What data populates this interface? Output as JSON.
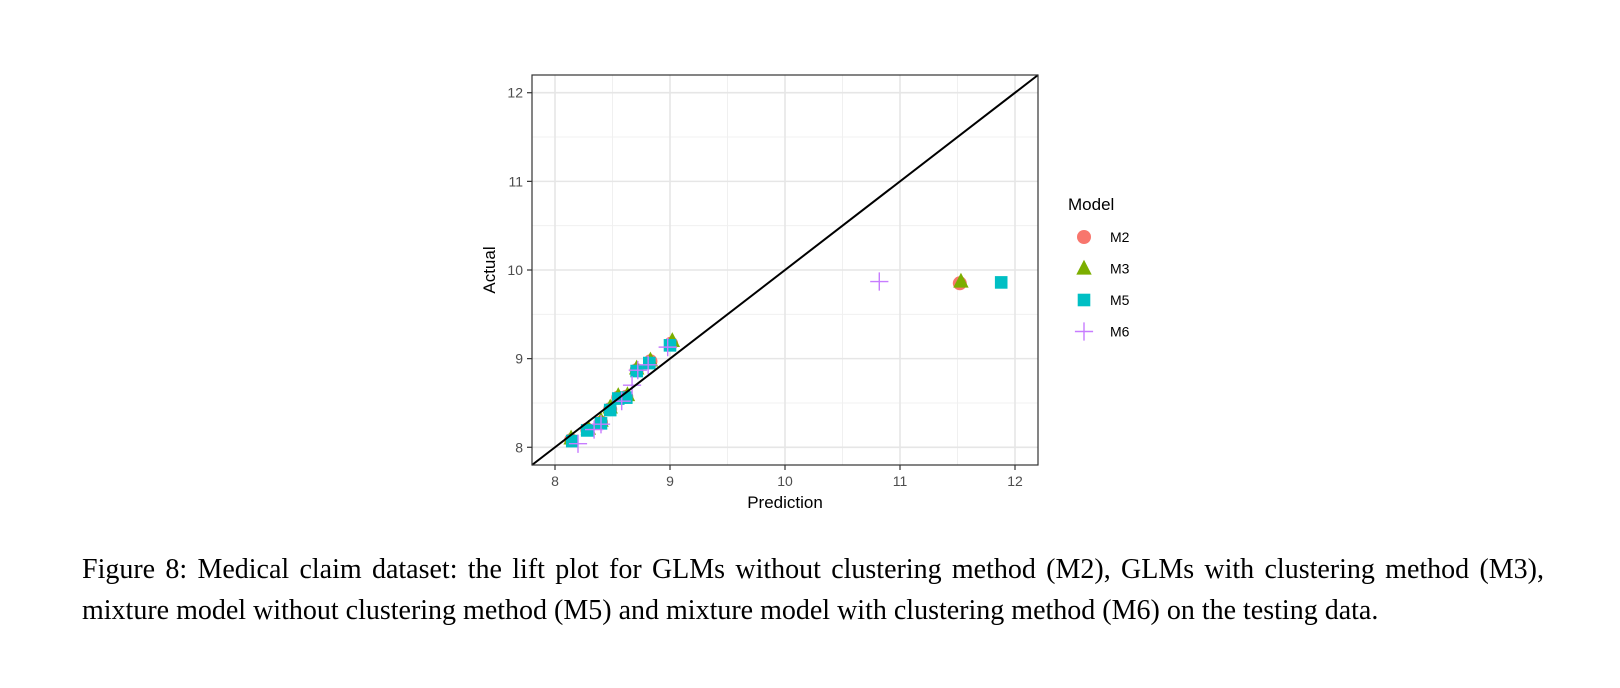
{
  "chart_data": {
    "type": "scatter",
    "title": "",
    "xlabel": "Prediction",
    "ylabel": "Actual",
    "xlim": [
      7.8,
      12.2
    ],
    "ylim": [
      7.8,
      12.2
    ],
    "x_ticks": [
      8,
      9,
      10,
      11,
      12
    ],
    "y_ticks": [
      8,
      9,
      10,
      11,
      12
    ],
    "x_tick_labels": [
      "8",
      "9",
      "10",
      "11",
      "12"
    ],
    "y_tick_labels": [
      "8",
      "9",
      "10",
      "11",
      "12"
    ],
    "grid": true,
    "reference_line": {
      "type": "identity",
      "color": "#000000"
    },
    "legend": {
      "title": "Model",
      "placement": "right",
      "entries": [
        {
          "label": "M2",
          "shape": "circle",
          "color": "#F8766D"
        },
        {
          "label": "M3",
          "shape": "triangle",
          "color": "#7CAE00"
        },
        {
          "label": "M5",
          "shape": "square",
          "color": "#00BFC4"
        },
        {
          "label": "M6",
          "shape": "plus",
          "color": "#C77CFF"
        }
      ]
    },
    "series": [
      {
        "name": "M2",
        "shape": "circle",
        "color": "#F8766D",
        "x": [
          8.14,
          8.28,
          8.4,
          8.48,
          8.55,
          8.62,
          8.71,
          8.83,
          9.01,
          11.52
        ],
        "y": [
          8.08,
          8.2,
          8.28,
          8.43,
          8.56,
          8.57,
          8.87,
          8.97,
          9.17,
          9.85
        ]
      },
      {
        "name": "M3",
        "shape": "triangle",
        "color": "#7CAE00",
        "x": [
          8.14,
          8.29,
          8.4,
          8.48,
          8.55,
          8.63,
          8.71,
          8.83,
          9.02,
          11.53
        ],
        "y": [
          8.1,
          8.21,
          8.3,
          8.45,
          8.58,
          8.59,
          8.89,
          8.98,
          9.2,
          9.87
        ]
      },
      {
        "name": "M5",
        "shape": "square",
        "color": "#00BFC4",
        "x": [
          8.15,
          8.28,
          8.4,
          8.48,
          8.55,
          8.62,
          8.71,
          8.82,
          9.0,
          11.88
        ],
        "y": [
          8.07,
          8.19,
          8.27,
          8.42,
          8.55,
          8.56,
          8.86,
          8.95,
          9.15,
          9.86
        ]
      },
      {
        "name": "M6",
        "shape": "plus",
        "color": "#C77CFF",
        "x": [
          8.2,
          8.34,
          8.4,
          8.58,
          8.67,
          8.72,
          8.81,
          8.98,
          10.82
        ],
        "y": [
          8.04,
          8.2,
          8.26,
          8.52,
          8.7,
          8.87,
          8.93,
          9.13,
          9.87
        ]
      }
    ]
  },
  "caption": {
    "line1": "Figure 8: Medical claim dataset: the lift plot for GLMs without clustering method (M2), GLMs with",
    "line2": "clustering method (M3), mixture model without clustering method (M5) and mixture model with",
    "line3": "clustering method (M6) on the testing data."
  }
}
